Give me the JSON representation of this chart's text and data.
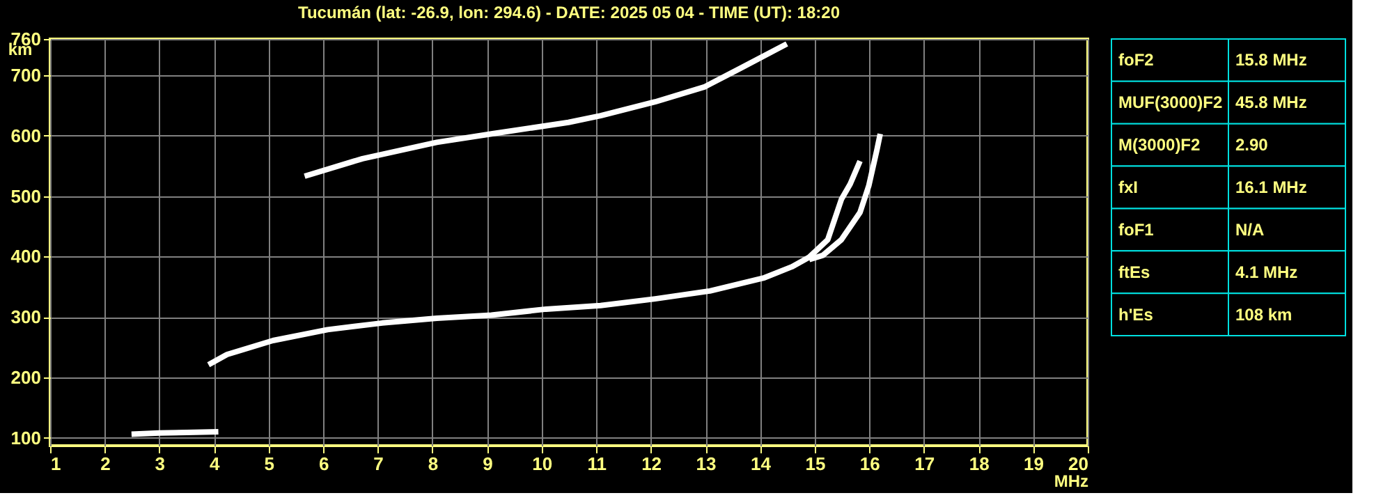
{
  "chart_data": [
    {
      "type": "line",
      "title": "Tucumán (lat: -26.9, lon: 294.6) - DATE: 2025 05 04 - TIME (UT): 18:20",
      "xlabel": "MHz",
      "ylabel": "km",
      "xlim": [
        1,
        20
      ],
      "xticks": [
        1,
        2,
        3,
        4,
        5,
        6,
        7,
        8,
        9,
        10,
        11,
        12,
        13,
        14,
        15,
        16,
        17,
        18,
        19,
        20
      ],
      "ylim": [
        87,
        760
      ],
      "yticks": [
        100,
        200,
        300,
        400,
        500,
        600,
        700,
        760
      ],
      "grid": true,
      "legend": false,
      "marker": "none",
      "line_style": "solid",
      "series": [
        {
          "color": "#ffffff",
          "x": [
            2.49,
            3.0,
            3.5,
            4.08
          ],
          "values": [
            106,
            108,
            109,
            110
          ]
        },
        {
          "color": "#ffffff",
          "x": [
            3.9,
            4.24,
            5.08,
            6.08,
            7.08,
            8.08,
            9.08,
            10.08,
            11.08,
            12.08,
            13.08,
            14.08,
            14.58,
            14.9,
            15.24,
            15.49,
            15.65,
            15.83
          ],
          "values": [
            221,
            238,
            261,
            279,
            290,
            298,
            303,
            313,
            319,
            330,
            343,
            365,
            383,
            399,
            428,
            495,
            520,
            558
          ]
        },
        {
          "color": "#ffffff",
          "x": [
            14.9,
            15.15,
            15.49,
            15.83,
            15.99,
            16.14,
            16.2
          ],
          "values": [
            395,
            402,
            428,
            473,
            517,
            577,
            603
          ]
        },
        {
          "color": "#ffffff",
          "x": [
            5.66,
            6.72,
            8.08,
            9.08,
            10.49,
            11.08,
            12.08,
            12.99,
            13.65,
            14.49
          ],
          "values": [
            533,
            562,
            589,
            603,
            622,
            633,
            656,
            681,
            712,
            752
          ]
        }
      ]
    },
    {
      "type": "other",
      "annotations": [
        "foF2",
        "15.8 MHz",
        "MUF(3000)F2",
        "45.8 MHz",
        "M(3000)F2",
        "2.90",
        "fxI",
        "16.1 MHz",
        "foF1",
        "N/A",
        "ftEs",
        "4.1 MHz",
        "h'Es",
        "108 km"
      ]
    }
  ]
}
